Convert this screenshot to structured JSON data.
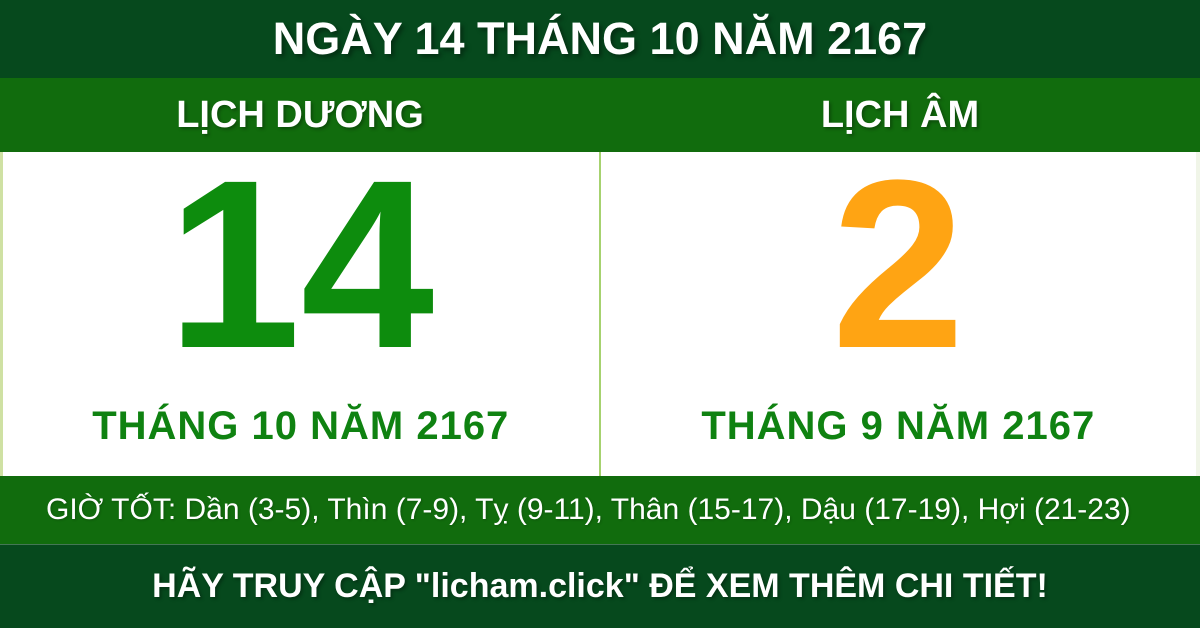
{
  "header": {
    "title": "NGÀY 14 THÁNG 10 NĂM 2167"
  },
  "calendar": {
    "solar": {
      "label": "LỊCH DƯƠNG",
      "day": "14",
      "month_year": "THÁNG 10 NĂM 2167"
    },
    "lunar": {
      "label": "LỊCH ÂM",
      "day": "2",
      "month_year": "THÁNG 9 NĂM 2167"
    }
  },
  "good_hours": {
    "text": "GIỜ TỐT: Dần (3-5), Thìn (7-9), Tỵ (9-11), Thân (15-17), Dậu (17-19), Hợi (21-23)"
  },
  "footer": {
    "text": "HÃY TRUY CẬP \"licham.click\" ĐỂ XEM THÊM CHI TIẾT!"
  },
  "colors": {
    "dark_green": "#06491d",
    "bar_green": "#116c0d",
    "day_green": "#0d8c0d",
    "month_green": "#0f8211",
    "orange": "#ffa413",
    "divider_green": "#a6d26f",
    "edge_green": "#cfe1a3",
    "text_white": "#ffffff"
  }
}
